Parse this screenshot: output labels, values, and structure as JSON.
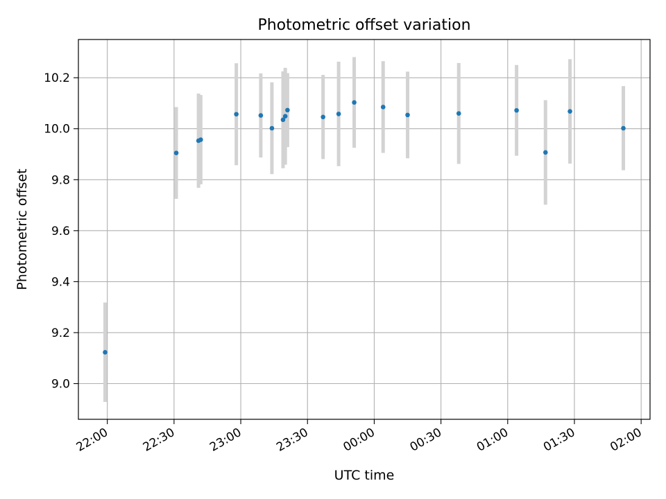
{
  "chart_data": {
    "type": "scatter",
    "title": "Photometric offset variation",
    "xlabel": "UTC time",
    "ylabel": "Photometric offset",
    "x_ticks": [
      "22:00",
      "22:30",
      "23:00",
      "23:30",
      "00:00",
      "00:30",
      "01:00",
      "01:30",
      "02:00"
    ],
    "y_ticks": [
      "9.0",
      "9.2",
      "9.4",
      "9.6",
      "9.8",
      "10.0",
      "10.2"
    ],
    "xlim": [
      "21:47",
      "02:04"
    ],
    "ylim": [
      8.86,
      10.35
    ],
    "grid": true,
    "point_color": "#1f77b4",
    "errorbar_color": "#d3d3d3",
    "points": [
      {
        "t": "21:59",
        "y": 9.123,
        "err": 0.195
      },
      {
        "t": "22:31",
        "y": 9.905,
        "err": 0.18
      },
      {
        "t": "22:41",
        "y": 9.953,
        "err": 0.185
      },
      {
        "t": "22:42",
        "y": 9.957,
        "err": 0.175
      },
      {
        "t": "22:58",
        "y": 10.057,
        "err": 0.2
      },
      {
        "t": "23:09",
        "y": 10.052,
        "err": 0.165
      },
      {
        "t": "23:14",
        "y": 10.002,
        "err": 0.18
      },
      {
        "t": "23:19",
        "y": 10.035,
        "err": 0.19
      },
      {
        "t": "23:20",
        "y": 10.049,
        "err": 0.19
      },
      {
        "t": "23:21",
        "y": 10.073,
        "err": 0.145
      },
      {
        "t": "23:37",
        "y": 10.046,
        "err": 0.165
      },
      {
        "t": "23:44",
        "y": 10.058,
        "err": 0.205
      },
      {
        "t": "23:51",
        "y": 10.103,
        "err": 0.178
      },
      {
        "t": "00:04",
        "y": 10.085,
        "err": 0.18
      },
      {
        "t": "00:15",
        "y": 10.054,
        "err": 0.17
      },
      {
        "t": "00:38",
        "y": 10.06,
        "err": 0.198
      },
      {
        "t": "01:04",
        "y": 10.072,
        "err": 0.178
      },
      {
        "t": "01:17",
        "y": 9.907,
        "err": 0.205
      },
      {
        "t": "01:28",
        "y": 10.068,
        "err": 0.205
      },
      {
        "t": "01:52",
        "y": 10.002,
        "err": 0.165
      }
    ]
  }
}
